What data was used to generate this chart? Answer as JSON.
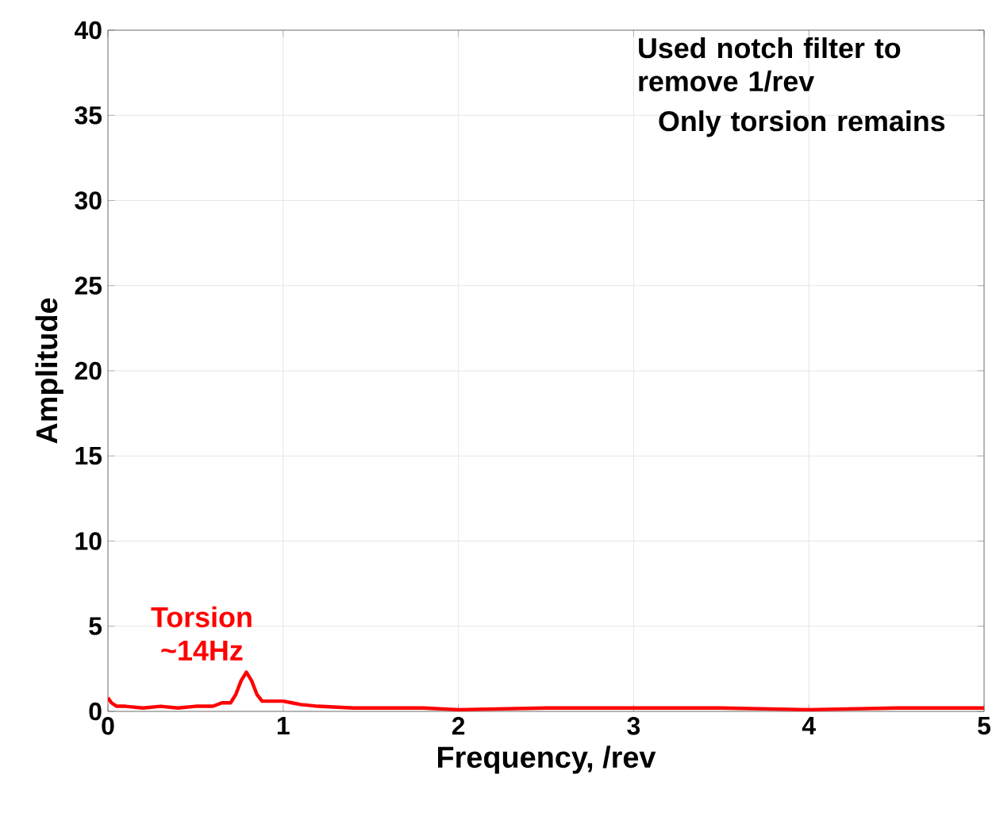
{
  "chart_data": {
    "type": "line",
    "xlabel": "Frequency, /rev",
    "ylabel": "Amplitude",
    "x": [
      0,
      0.02,
      0.05,
      0.1,
      0.2,
      0.3,
      0.4,
      0.5,
      0.6,
      0.65,
      0.7,
      0.73,
      0.76,
      0.79,
      0.82,
      0.85,
      0.88,
      0.95,
      1.0,
      1.05,
      1.1,
      1.2,
      1.4,
      1.6,
      1.8,
      2.0,
      2.5,
      3.0,
      3.5,
      4.0,
      4.5,
      5.0
    ],
    "series": [
      {
        "color": "#ff0000",
        "values": [
          0.8,
          0.5,
          0.3,
          0.3,
          0.2,
          0.3,
          0.2,
          0.3,
          0.3,
          0.5,
          0.5,
          1.0,
          1.8,
          2.3,
          1.8,
          1.0,
          0.6,
          0.6,
          0.6,
          0.5,
          0.4,
          0.3,
          0.2,
          0.2,
          0.2,
          0.1,
          0.2,
          0.2,
          0.2,
          0.1,
          0.2,
          0.2
        ]
      }
    ],
    "xlim": [
      0,
      5
    ],
    "ylim": [
      0,
      40
    ],
    "xticks": [
      0,
      1,
      2,
      3,
      4,
      5
    ],
    "yticks": [
      0,
      5,
      10,
      15,
      20,
      25,
      30,
      35,
      40
    ],
    "grid": true,
    "marker": "none",
    "line_style": "solid",
    "annotations": [
      {
        "text": "Torsion ~14Hz",
        "x": 0.79,
        "y": 2.3
      },
      "Used notch filter to remove 1/rev",
      "Only torsion remains"
    ]
  }
}
